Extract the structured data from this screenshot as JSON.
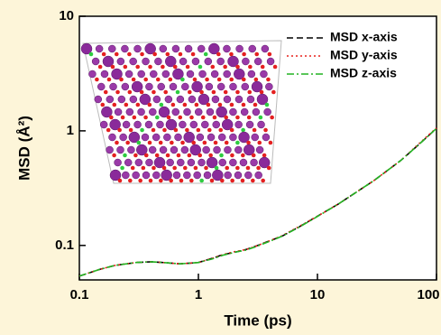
{
  "chart_data": {
    "type": "line",
    "xlabel": "Time (ps)",
    "ylabel": "MSD (Å²)",
    "x": [
      0.1,
      0.15,
      0.2,
      0.3,
      0.4,
      0.5,
      0.7,
      1,
      1.3,
      1.6,
      2,
      2.5,
      3,
      4,
      5,
      7,
      10,
      15,
      20,
      30,
      50,
      70,
      100
    ],
    "series": [
      {
        "name": "MSD x-axis",
        "color": "#000000",
        "dash": "dashed",
        "values": [
          0.054,
          0.062,
          0.067,
          0.071,
          0.072,
          0.071,
          0.069,
          0.071,
          0.077,
          0.083,
          0.087,
          0.092,
          0.098,
          0.11,
          0.12,
          0.145,
          0.18,
          0.23,
          0.28,
          0.37,
          0.55,
          0.75,
          1.05
        ]
      },
      {
        "name": "MSD y-axis",
        "color": "#e8201a",
        "dash": "dotted",
        "values": [
          0.054,
          0.062,
          0.067,
          0.071,
          0.072,
          0.071,
          0.069,
          0.071,
          0.077,
          0.083,
          0.088,
          0.092,
          0.098,
          0.11,
          0.121,
          0.146,
          0.18,
          0.23,
          0.28,
          0.37,
          0.55,
          0.76,
          1.06
        ]
      },
      {
        "name": "MSD z-axis",
        "color": "#22b422",
        "dash": "dashdot",
        "values": [
          0.054,
          0.062,
          0.067,
          0.071,
          0.072,
          0.071,
          0.069,
          0.071,
          0.076,
          0.082,
          0.087,
          0.091,
          0.097,
          0.109,
          0.12,
          0.144,
          0.179,
          0.23,
          0.28,
          0.37,
          0.55,
          0.75,
          1.05
        ]
      }
    ],
    "xscale": "log",
    "yscale": "log",
    "xlim": [
      0.1,
      100
    ],
    "ylim": [
      0.05,
      10
    ],
    "xticks": [
      0.1,
      1,
      10,
      100
    ],
    "yticks": [
      0.1,
      1,
      10
    ],
    "legend": "upper right"
  }
}
